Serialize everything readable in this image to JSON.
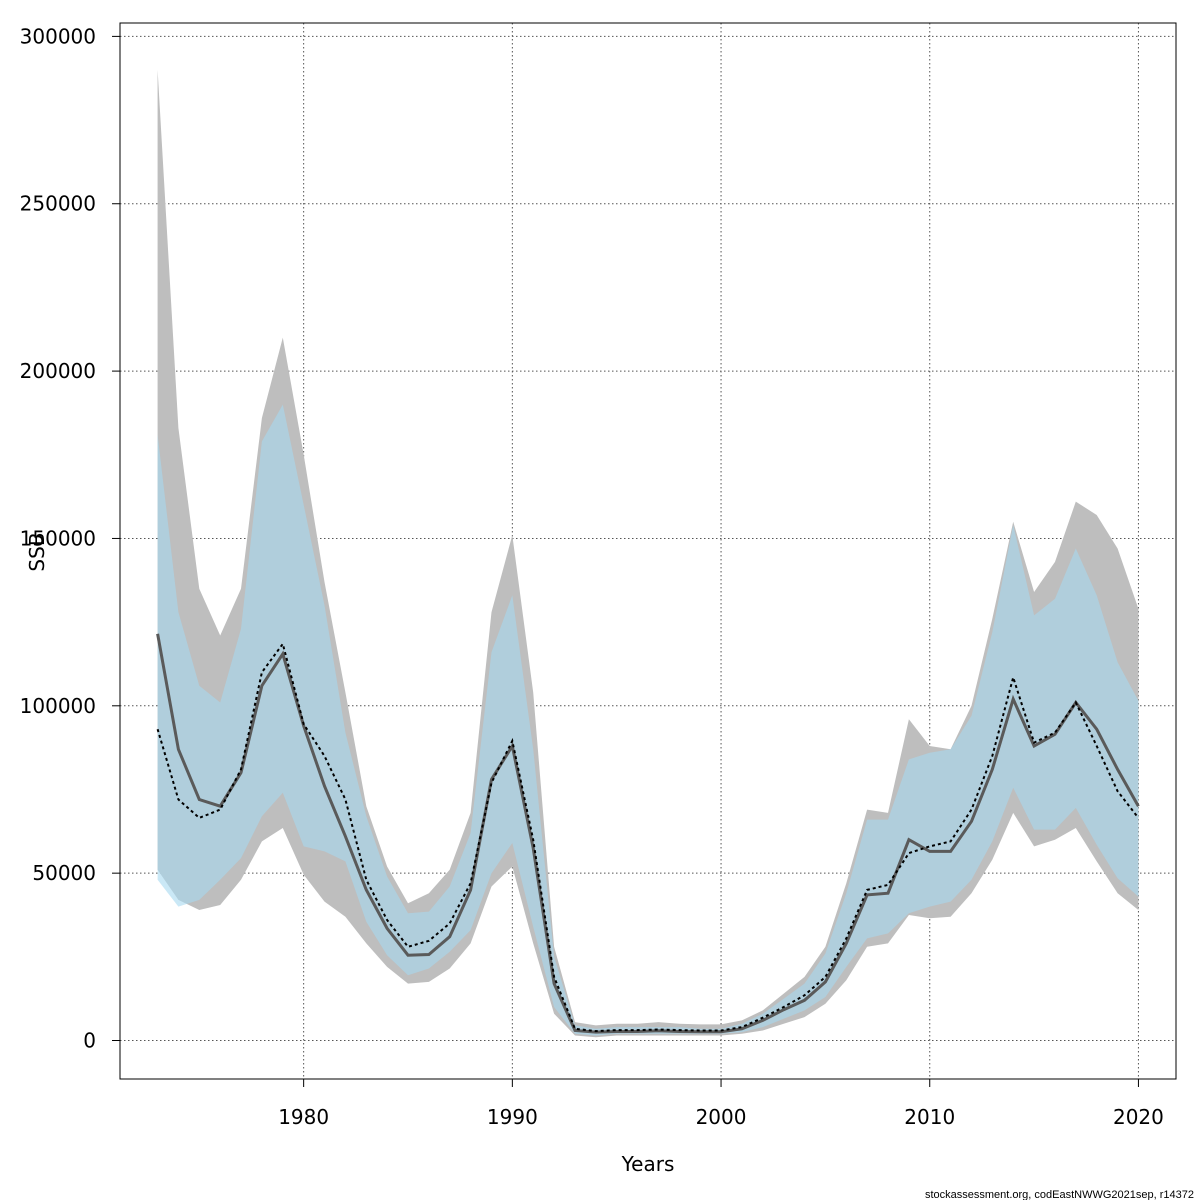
{
  "chart_data": {
    "type": "area",
    "title": "",
    "xlabel": "Years",
    "ylabel": "SSB",
    "xlim": [
      1971.2,
      2021.8
    ],
    "ylim": [
      -11500,
      304000
    ],
    "xticks": [
      1980,
      1990,
      2000,
      2010,
      2020
    ],
    "yticks": [
      0,
      50000,
      100000,
      150000,
      200000,
      250000,
      300000
    ],
    "grid": true,
    "credit": "stockassessment.org, codEastNWWG2021sep, r14372",
    "colors": {
      "grey_band": "#bebebe",
      "blue_band": "#a6d8f0",
      "grey_line": "#5a5a5a",
      "black_line": "#000000"
    },
    "x": [
      1973,
      1974,
      1975,
      1976,
      1977,
      1978,
      1979,
      1980,
      1981,
      1982,
      1983,
      1984,
      1985,
      1986,
      1987,
      1988,
      1989,
      1990,
      1991,
      1992,
      1993,
      1994,
      1995,
      1996,
      1997,
      1998,
      1999,
      2000,
      2001,
      2002,
      2003,
      2004,
      2005,
      2006,
      2007,
      2008,
      2009,
      2010,
      2011,
      2012,
      2013,
      2014,
      2015,
      2016,
      2017,
      2018,
      2019,
      2020
    ],
    "series": [
      {
        "kind": "band",
        "upper": [
          290000,
          183000,
          135000,
          121000,
          135000,
          186000,
          210000,
          175000,
          137000,
          104000,
          70000,
          52000,
          41000,
          44000,
          51000,
          68000,
          128000,
          151000,
          104000,
          28000,
          5500,
          4500,
          5000,
          5000,
          5500,
          5000,
          4800,
          4800,
          6000,
          9000,
          14000,
          19000,
          28000,
          47000,
          69000,
          68000,
          96000,
          88000,
          87000,
          100000,
          126000,
          155000,
          134000,
          143000,
          161000,
          157000,
          147000,
          129000
        ],
        "lower": [
          51000,
          42000,
          39000,
          40500,
          48000,
          59500,
          63500,
          49500,
          41500,
          37000,
          29000,
          22000,
          17000,
          17500,
          21500,
          29000,
          46000,
          52000,
          29000,
          8000,
          1500,
          1000,
          1500,
          1500,
          1500,
          1500,
          1500,
          1500,
          2000,
          3000,
          5000,
          7000,
          11000,
          18000,
          28000,
          29000,
          37500,
          36500,
          37000,
          44000,
          54000,
          68000,
          58000,
          60000,
          63500,
          53500,
          44000,
          39000
        ]
      },
      {
        "kind": "band",
        "upper": [
          181000,
          128000,
          106000,
          101000,
          123000,
          179000,
          190000,
          160000,
          130000,
          92000,
          67000,
          49000,
          38000,
          38500,
          46000,
          62000,
          116000,
          133000,
          87000,
          25000,
          4500,
          3500,
          4000,
          4000,
          4000,
          4000,
          3500,
          3500,
          5000,
          8000,
          12500,
          17000,
          26000,
          44000,
          66000,
          66000,
          84000,
          86000,
          87000,
          97000,
          122000,
          154000,
          127000,
          132000,
          147000,
          133000,
          113000,
          101500
        ],
        "lower": [
          48000,
          40000,
          42000,
          48000,
          54500,
          67000,
          74000,
          58000,
          56500,
          53500,
          35500,
          25500,
          19500,
          21500,
          26500,
          33000,
          50000,
          59000,
          34000,
          10000,
          2000,
          1500,
          2000,
          2000,
          2000,
          2000,
          2000,
          2000,
          2500,
          4000,
          6500,
          9000,
          13000,
          22000,
          30500,
          32000,
          38000,
          40000,
          41500,
          48000,
          59500,
          75500,
          63000,
          63000,
          69500,
          58500,
          48500,
          43000
        ]
      },
      {
        "kind": "line",
        "name": "",
        "values": [
          121500,
          87000,
          72000,
          70000,
          80000,
          106000,
          115500,
          94000,
          76000,
          61000,
          45000,
          33500,
          25500,
          25700,
          31000,
          45000,
          78000,
          88000,
          57500,
          17000,
          3000,
          2500,
          2700,
          2700,
          2900,
          2700,
          2600,
          2600,
          3500,
          6000,
          9200,
          12000,
          17500,
          29000,
          43500,
          44000,
          60000,
          56500,
          56500,
          65500,
          81000,
          102000,
          88000,
          91500,
          101000,
          93000,
          81000,
          70000
        ]
      },
      {
        "kind": "line",
        "name": "",
        "values": [
          93000,
          72000,
          66500,
          69000,
          81000,
          110000,
          118500,
          94500,
          85000,
          72000,
          48000,
          36000,
          28000,
          29800,
          35000,
          47000,
          77000,
          89500,
          60000,
          19000,
          3500,
          2800,
          3100,
          3100,
          3300,
          3100,
          3000,
          3000,
          4000,
          6800,
          10000,
          13500,
          19000,
          30500,
          45000,
          46500,
          56000,
          58000,
          59500,
          69000,
          85000,
          108500,
          89000,
          92000,
          101000,
          88000,
          74500,
          66500
        ]
      }
    ]
  }
}
